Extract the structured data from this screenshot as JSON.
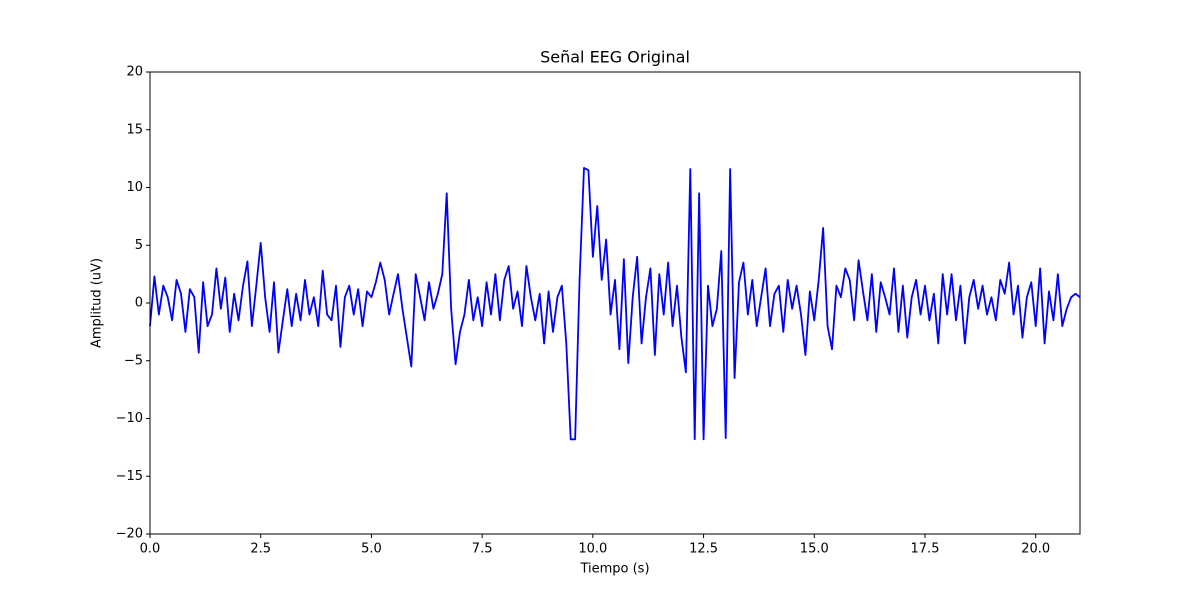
{
  "chart_data": {
    "type": "line",
    "title": "Señal EEG Original",
    "xlabel": "Tiempo (s)",
    "ylabel": "Amplitud (uV)",
    "xlim": [
      0,
      21
    ],
    "ylim": [
      -20,
      20
    ],
    "xticks": [
      {
        "value": 0,
        "label": "0.0"
      },
      {
        "value": 2.5,
        "label": "2.5"
      },
      {
        "value": 5,
        "label": "5.0"
      },
      {
        "value": 7.5,
        "label": "7.5"
      },
      {
        "value": 10,
        "label": "10.0"
      },
      {
        "value": 12.5,
        "label": "12.5"
      },
      {
        "value": 15,
        "label": "15.0"
      },
      {
        "value": 17.5,
        "label": "17.5"
      },
      {
        "value": 20,
        "label": "20.0"
      }
    ],
    "yticks": [
      {
        "value": -20,
        "label": "−20"
      },
      {
        "value": -15,
        "label": "−15"
      },
      {
        "value": -10,
        "label": "−10"
      },
      {
        "value": -5,
        "label": "−5"
      },
      0,
      5,
      10,
      15,
      20
    ],
    "grid": false,
    "x": [
      0,
      0.1,
      0.2,
      0.3,
      0.4,
      0.5,
      0.6,
      0.7,
      0.8,
      0.9,
      1,
      1.1,
      1.2,
      1.3,
      1.4,
      1.5,
      1.6,
      1.7,
      1.8,
      1.9,
      2,
      2.1,
      2.2,
      2.3,
      2.4,
      2.5,
      2.6,
      2.7,
      2.8,
      2.9,
      3,
      3.1,
      3.2,
      3.3,
      3.4,
      3.5,
      3.6,
      3.7,
      3.8,
      3.9,
      4,
      4.1,
      4.2,
      4.3,
      4.4,
      4.5,
      4.6,
      4.7,
      4.8,
      4.9,
      5,
      5.1,
      5.2,
      5.3,
      5.4,
      5.5,
      5.6,
      5.7,
      5.8,
      5.9,
      6,
      6.1,
      6.2,
      6.3,
      6.4,
      6.5,
      6.6,
      6.7,
      6.8,
      6.9,
      7,
      7.1,
      7.2,
      7.3,
      7.4,
      7.5,
      7.6,
      7.7,
      7.8,
      7.9,
      8,
      8.1,
      8.2,
      8.3,
      8.4,
      8.5,
      8.6,
      8.7,
      8.8,
      8.9,
      9,
      9.1,
      9.2,
      9.3,
      9.4,
      9.5,
      9.6,
      9.7,
      9.8,
      9.9,
      10,
      10.1,
      10.2,
      10.3,
      10.4,
      10.5,
      10.6,
      10.7,
      10.8,
      10.9,
      11,
      11.1,
      11.2,
      11.3,
      11.4,
      11.5,
      11.6,
      11.7,
      11.8,
      11.9,
      12,
      12.1,
      12.2,
      12.3,
      12.4,
      12.5,
      12.6,
      12.7,
      12.8,
      12.9,
      13,
      13.1,
      13.2,
      13.3,
      13.4,
      13.5,
      13.6,
      13.7,
      13.8,
      13.9,
      14,
      14.1,
      14.2,
      14.3,
      14.4,
      14.5,
      14.6,
      14.7,
      14.8,
      14.9,
      15,
      15.1,
      15.2,
      15.3,
      15.4,
      15.5,
      15.6,
      15.7,
      15.8,
      15.9,
      16,
      16.1,
      16.2,
      16.3,
      16.4,
      16.5,
      16.6,
      16.7,
      16.8,
      16.9,
      17,
      17.1,
      17.2,
      17.3,
      17.4,
      17.5,
      17.6,
      17.7,
      17.8,
      17.9,
      18,
      18.1,
      18.2,
      18.3,
      18.4,
      18.5,
      18.6,
      18.7,
      18.8,
      18.9,
      19,
      19.1,
      19.2,
      19.3,
      19.4,
      19.5,
      19.6,
      19.7,
      19.8,
      19.9,
      20,
      20.1,
      20.2,
      20.3,
      20.4,
      20.5,
      20.6,
      20.7,
      20.8,
      20.9,
      21
    ],
    "series": [
      {
        "color": "#0000ff",
        "values": [
          -2,
          2.3,
          -1,
          1.5,
          0.5,
          -1.5,
          2,
          0.8,
          -2.5,
          1.2,
          0.5,
          -4.3,
          1.8,
          -2,
          -1,
          3,
          -0.5,
          2.2,
          -2.5,
          0.8,
          -1.5,
          1.5,
          3.6,
          -2,
          1.5,
          5.2,
          0.5,
          -2.5,
          1.8,
          -4.3,
          -1.5,
          1.2,
          -2,
          0.8,
          -1.5,
          2,
          -1,
          0.5,
          -2,
          2.8,
          -1,
          -1.5,
          1.5,
          -3.8,
          0.5,
          1.5,
          -1,
          1.2,
          -2,
          1,
          0.5,
          1.8,
          3.5,
          2,
          -1,
          0.8,
          2.5,
          -0.5,
          -3,
          -5.5,
          2.5,
          0.5,
          -1.5,
          1.8,
          -0.5,
          0.8,
          2.5,
          9.5,
          -0.5,
          -5.3,
          -2.5,
          -1,
          2,
          -1.5,
          0.5,
          -2,
          1.8,
          -1,
          2.5,
          -1.5,
          2,
          3.2,
          -0.5,
          1,
          -2,
          3.2,
          0.5,
          -1.5,
          0.8,
          -3.5,
          1,
          -2.5,
          0.5,
          1.5,
          -3.5,
          -11.8,
          -11.8,
          2,
          11.7,
          11.5,
          4,
          8.4,
          2,
          5.5,
          -1,
          2,
          -4,
          3.8,
          -5.2,
          0.5,
          4,
          -3.5,
          0.5,
          3,
          -4.5,
          2.5,
          -1,
          3.5,
          -2,
          1.5,
          -3,
          -6,
          11.6,
          -11.8,
          9.5,
          -11.8,
          1.5,
          -2,
          -0.5,
          4.5,
          -11.7,
          11.6,
          -6.5,
          1.8,
          3.5,
          -1,
          2,
          -2,
          0.5,
          3,
          -2,
          0.8,
          1.5,
          -2.5,
          2,
          -0.5,
          1.5,
          -1,
          -4.5,
          1,
          -1.5,
          2,
          6.5,
          -2,
          -4,
          1.5,
          0.5,
          3,
          2,
          -1.5,
          3.7,
          1,
          -1.5,
          2.5,
          -2.5,
          1.8,
          0.5,
          -1,
          3,
          -2.5,
          1.5,
          -3,
          0.5,
          2,
          -1,
          1.5,
          -1.5,
          0.8,
          -3.5,
          2.5,
          -1,
          2.5,
          -1.5,
          1.5,
          -3.5,
          0.5,
          2,
          -0.5,
          1.5,
          -1,
          0.5,
          -1.5,
          2,
          0.8,
          3.5,
          -1,
          1.5,
          -3,
          0.5,
          1.8,
          -2,
          3,
          -3.5,
          1,
          -1.5,
          2.5,
          -2,
          -0.5,
          0.5,
          0.8,
          0.5
        ]
      }
    ]
  }
}
